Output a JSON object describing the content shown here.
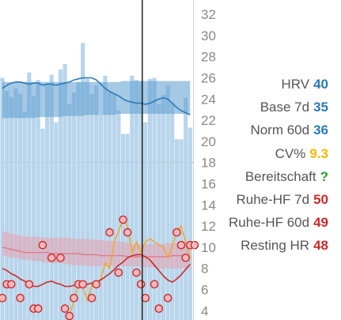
{
  "colors": {
    "hrv": "#2a7ab6",
    "bar": "#b4d3ea",
    "band_hrv": "#5b9cd0",
    "orange": "#f5a623",
    "cv": "#f5b800",
    "green": "#2da02d",
    "red": "#cc2a2a",
    "red_band": "#e8a2ae",
    "axis_text": "#888888",
    "legend_text": "#555555"
  },
  "chart_data": {
    "type": "bar",
    "y_ticks": [
      "32",
      "30",
      "28",
      "26",
      "24",
      "22",
      "20",
      "18",
      "16",
      "14",
      "12",
      "10",
      "8",
      "6",
      "4"
    ],
    "ylim": [
      3.0,
      33.2
    ],
    "hrv_bars": [
      26,
      24.8,
      24.2,
      25,
      24.5,
      22.8,
      26.5,
      24.3,
      25.8,
      21.2,
      25.5,
      26.3,
      21.8,
      26.8,
      27.3,
      23.5,
      24.6,
      25.6,
      29.3,
      25.9,
      24.5,
      25.3,
      22.5,
      26.2,
      24.6,
      24.5,
      22.9,
      20.7,
      20.7,
      26.2,
      25.8,
      25.7,
      21.8,
      25.9,
      26,
      23.5,
      24.4,
      25.3,
      23.6,
      20.2,
      20.2,
      24.1,
      21.3
    ],
    "hrv_7d_line": [
      25,
      25.3,
      25.5,
      25.6,
      25.6,
      25.5,
      25.4,
      25.5,
      25.5,
      25.3,
      25.4,
      25.4,
      25.3,
      25.4,
      25.5,
      25.6,
      25.8,
      25.9,
      26,
      26,
      26,
      25.8,
      25.4,
      25,
      24.7,
      24.5,
      24.3,
      24,
      23.8,
      23.7,
      23.6,
      23.6,
      23.5,
      23.6,
      23.8,
      24,
      24.1,
      24,
      23.6,
      23.2,
      22.9,
      22.7,
      22.5
    ],
    "hrv_band_low": [
      22.2,
      22.2,
      22.2,
      22.2,
      22.2,
      22.2,
      22.2,
      22.2,
      22.3,
      22.3,
      22.3,
      22.3,
      22.3,
      22.3,
      22.4,
      22.4,
      22.4,
      22.4,
      22.4,
      22.5,
      22.5,
      22.5,
      22.5,
      22.5,
      22.5,
      22.5,
      22.6,
      22.6,
      22.6,
      22.6,
      22.6,
      22.6,
      22.6,
      22.6,
      22.6,
      22.6,
      22.6,
      22.6,
      22.6,
      22.6,
      22.6,
      22.6,
      22.6
    ],
    "hrv_band_high": [
      25.6,
      25.6,
      25.6,
      25.6,
      25.6,
      25.6,
      25.6,
      25.6,
      25.6,
      25.6,
      25.6,
      25.6,
      25.6,
      25.6,
      25.6,
      25.6,
      25.6,
      25.6,
      25.6,
      25.6,
      25.6,
      25.6,
      25.6,
      25.6,
      25.6,
      25.6,
      25.6,
      25.7,
      25.7,
      25.7,
      25.7,
      25.7,
      25.7,
      25.7,
      25.7,
      25.7,
      25.7,
      25.7,
      25.7,
      25.7,
      25.7,
      25.7,
      25.7
    ],
    "hr_band_low": [
      9.2,
      9.1,
      9,
      9,
      8.9,
      8.8,
      8.8,
      8.7,
      8.7,
      8.6,
      8.6,
      8.5,
      8.5,
      8.5,
      8.4,
      8.4,
      8.3,
      8.3,
      8.3,
      8.2,
      8.2,
      8.2,
      8.2,
      8.2,
      8.2,
      8.2,
      8.2,
      8.2,
      8.2,
      8.2,
      8.2,
      8.1,
      8.1,
      8.1,
      8.1,
      8,
      8,
      8,
      8,
      8,
      8,
      8,
      8
    ],
    "hr_band_high": [
      11.5,
      11.4,
      11.3,
      11.2,
      11.1,
      11,
      11,
      11,
      11,
      10.9,
      10.9,
      10.9,
      10.9,
      10.9,
      10.9,
      10.9,
      10.8,
      10.8,
      10.8,
      10.8,
      10.7,
      10.7,
      10.7,
      10.6,
      10.6,
      10.6,
      10.6,
      10.5,
      10.4,
      10.3,
      10.3,
      10.3,
      10.3,
      10.3,
      10.3,
      10.3,
      10.3,
      10.4,
      10.4,
      10.4,
      10.5,
      10.5,
      10.5
    ],
    "hr_60d_line": [
      10,
      9.9,
      9.8,
      9.7,
      9.6,
      9.5,
      9.5,
      9.5,
      9.5,
      9.5,
      9.5,
      9.4,
      9.4,
      9.4,
      9.4,
      9.4,
      9.4,
      9.4,
      9.3,
      9.3,
      9.3,
      9.3,
      9.2,
      9.2,
      9.2,
      9.2,
      9.2,
      9.2,
      9.1,
      9.1,
      9.1,
      9.1,
      9.1,
      9.1,
      9.1,
      9.1,
      9.1,
      9.1,
      9.2,
      9.2,
      9.2,
      9.2,
      9.2
    ],
    "hr_7d_line": [
      8,
      7.8,
      7.5,
      7.3,
      7,
      6.8,
      6.5,
      6.3,
      6.3,
      6.5,
      6.7,
      6.8,
      6.6,
      6.5,
      6.3,
      6.3,
      6.4,
      6.5,
      6.5,
      6.5,
      6.6,
      6.7,
      6.9,
      7.2,
      7.5,
      7.9,
      8.3,
      8.6,
      9,
      9.2,
      9.3,
      9.3,
      9.1,
      8.8,
      8.3,
      7.8,
      7.3,
      6.9,
      6.7,
      7,
      7.4,
      7.9,
      8.4
    ],
    "orange_line": [
      null,
      null,
      null,
      null,
      null,
      null,
      null,
      null,
      null,
      null,
      null,
      null,
      null,
      null,
      null,
      3.5,
      5,
      6.5,
      6.2,
      5,
      6.4,
      6.4,
      7,
      8.5,
      8,
      10.5,
      11.5,
      12.6,
      12,
      9.5,
      10.5,
      9.5,
      10.5,
      10.8,
      10.5,
      10.2,
      10,
      9,
      10,
      11.5,
      12,
      10.5,
      9
    ],
    "circles": [
      {
        "i": 0,
        "v": 5.2
      },
      {
        "i": 1,
        "v": 6.5
      },
      {
        "i": 2,
        "v": 6.5
      },
      {
        "i": 4,
        "v": 5.2
      },
      {
        "i": 6,
        "v": 6.5
      },
      {
        "i": 7,
        "v": 4.2
      },
      {
        "i": 8,
        "v": 4.2
      },
      {
        "i": 9,
        "v": 10.2
      },
      {
        "i": 11,
        "v": 9
      },
      {
        "i": 13,
        "v": 9
      },
      {
        "i": 14,
        "v": 4.2
      },
      {
        "i": 15,
        "v": 3.5
      },
      {
        "i": 16,
        "v": 5.2
      },
      {
        "i": 17,
        "v": 6.5
      },
      {
        "i": 18,
        "v": 6.5
      },
      {
        "i": 20,
        "v": 5.2
      },
      {
        "i": 21,
        "v": 6.5
      },
      {
        "i": 24,
        "v": 11.4
      },
      {
        "i": 26,
        "v": 7.6
      },
      {
        "i": 27,
        "v": 12.6
      },
      {
        "i": 28,
        "v": 11.4
      },
      {
        "i": 30,
        "v": 7.6
      },
      {
        "i": 31,
        "v": 6.5
      },
      {
        "i": 32,
        "v": 5.2
      },
      {
        "i": 34,
        "v": 6.5
      },
      {
        "i": 35,
        "v": 4.2
      },
      {
        "i": 37,
        "v": 5.2
      },
      {
        "i": 39,
        "v": 11.4
      },
      {
        "i": 40,
        "v": 10.2
      },
      {
        "i": 41,
        "v": 9
      },
      {
        "i": 42,
        "v": 10.2
      },
      {
        "i": 43,
        "v": 10.2
      }
    ],
    "cursor_index": 31.3
  },
  "legend": [
    {
      "label": "HRV",
      "value": "40",
      "color_key": "hrv"
    },
    {
      "label": "Base 7d",
      "value": "35",
      "color_key": "hrv"
    },
    {
      "label": "Norm 60d",
      "value": "36",
      "color_key": "hrv"
    },
    {
      "label": "CV%",
      "value": "9.3",
      "color_key": "cv"
    },
    {
      "label": "Bereitschaft",
      "value": "?",
      "color_key": "green"
    },
    {
      "label": "Ruhe-HF 7d",
      "value": "50",
      "color_key": "red"
    },
    {
      "label": "Ruhe-HF 60d",
      "value": "49",
      "color_key": "red"
    },
    {
      "label": "Resting HR",
      "value": "48",
      "color_key": "red"
    }
  ]
}
